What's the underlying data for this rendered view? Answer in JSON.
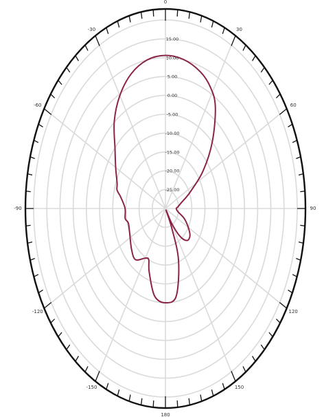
{
  "chart_data": {
    "type": "polar",
    "angle_unit": "deg",
    "angle_zero": "top",
    "angle_direction": "clockwise",
    "angle_labels": [
      "0",
      "30",
      "60",
      "90",
      "120",
      "150",
      "180",
      "-150",
      "-120",
      "-90",
      "-60",
      "-30"
    ],
    "radial_labels": [
      "15.00",
      "10.00",
      "5.00",
      "0.00",
      "-5.00",
      "-10.00",
      "-15.00",
      "-20.00",
      "-25.00"
    ],
    "rlim": [
      -30,
      20
    ],
    "grid": true,
    "series": [
      {
        "color": "#8b2346",
        "angles": [
          0,
          10,
          20,
          28,
          35,
          45,
          55,
          65,
          75,
          85,
          90,
          100,
          110,
          120,
          128,
          136,
          143,
          149,
          152,
          155,
          160,
          170,
          180,
          -170,
          -160,
          -155,
          -150,
          -140,
          -130,
          -115,
          -105,
          -100,
          -90,
          -80,
          -75,
          -70,
          -60,
          -50,
          -40,
          -30,
          -20,
          -10
        ],
        "values": [
          10.6,
          10.1,
          8.6,
          6.4,
          3.0,
          -4.8,
          -12.5,
          -19.6,
          -23.6,
          -25.3,
          -25.9,
          -25.2,
          -22.5,
          -20.0,
          -18.2,
          -18.2,
          -20.7,
          -25.4,
          -29.5,
          -24.6,
          -15.5,
          -6.4,
          -5.0,
          -6.4,
          -12.0,
          -15.0,
          -14.8,
          -12.3,
          -13.2,
          -15.0,
          -15.4,
          -14.5,
          -14.7,
          -12.8,
          -11.0,
          -10.5,
          -8.2,
          -5.0,
          0.2,
          4.6,
          8.0,
          10.0
        ]
      }
    ]
  }
}
